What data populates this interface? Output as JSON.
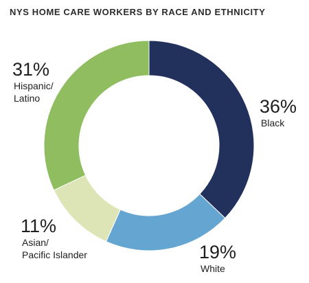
{
  "chart_data": {
    "type": "donut",
    "title": "NYS HOME CARE WORKERS BY RACE AND ETHNICITY",
    "categories": [
      "Black",
      "White",
      "Asian/\nPacific Islander",
      "Hispanic/\nLatino"
    ],
    "values": [
      36,
      19,
      11,
      31
    ],
    "value_labels": [
      "36%",
      "19%",
      "11%",
      "31%"
    ],
    "colors": [
      "#22305c",
      "#64a5d1",
      "#dde5b6",
      "#8fbd5f"
    ]
  }
}
